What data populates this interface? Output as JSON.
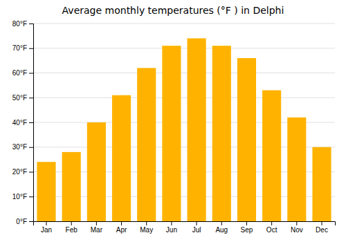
{
  "chart_data": {
    "type": "bar",
    "title": "Average monthly temperatures (°F ) in Delphi",
    "categories": [
      "Jan",
      "Feb",
      "Mar",
      "Apr",
      "May",
      "Jun",
      "Jul",
      "Aug",
      "Sep",
      "Oct",
      "Nov",
      "Dec"
    ],
    "values": [
      24,
      28,
      40,
      51,
      62,
      71,
      74,
      71,
      66,
      53,
      42,
      30
    ],
    "color": "#FFB300",
    "ylim": [
      0,
      80
    ],
    "yticks": [
      {
        "value": 0,
        "label": "0°F"
      },
      {
        "value": 10,
        "label": "10°F"
      },
      {
        "value": 20,
        "label": "20°F"
      },
      {
        "value": 30,
        "label": "30°F"
      },
      {
        "value": 40,
        "label": "40°F"
      },
      {
        "value": 50,
        "label": "50°F"
      },
      {
        "value": 60,
        "label": "60°F"
      },
      {
        "value": 70,
        "label": "70°F"
      },
      {
        "value": 80,
        "label": "80°F"
      }
    ],
    "grid": true
  }
}
